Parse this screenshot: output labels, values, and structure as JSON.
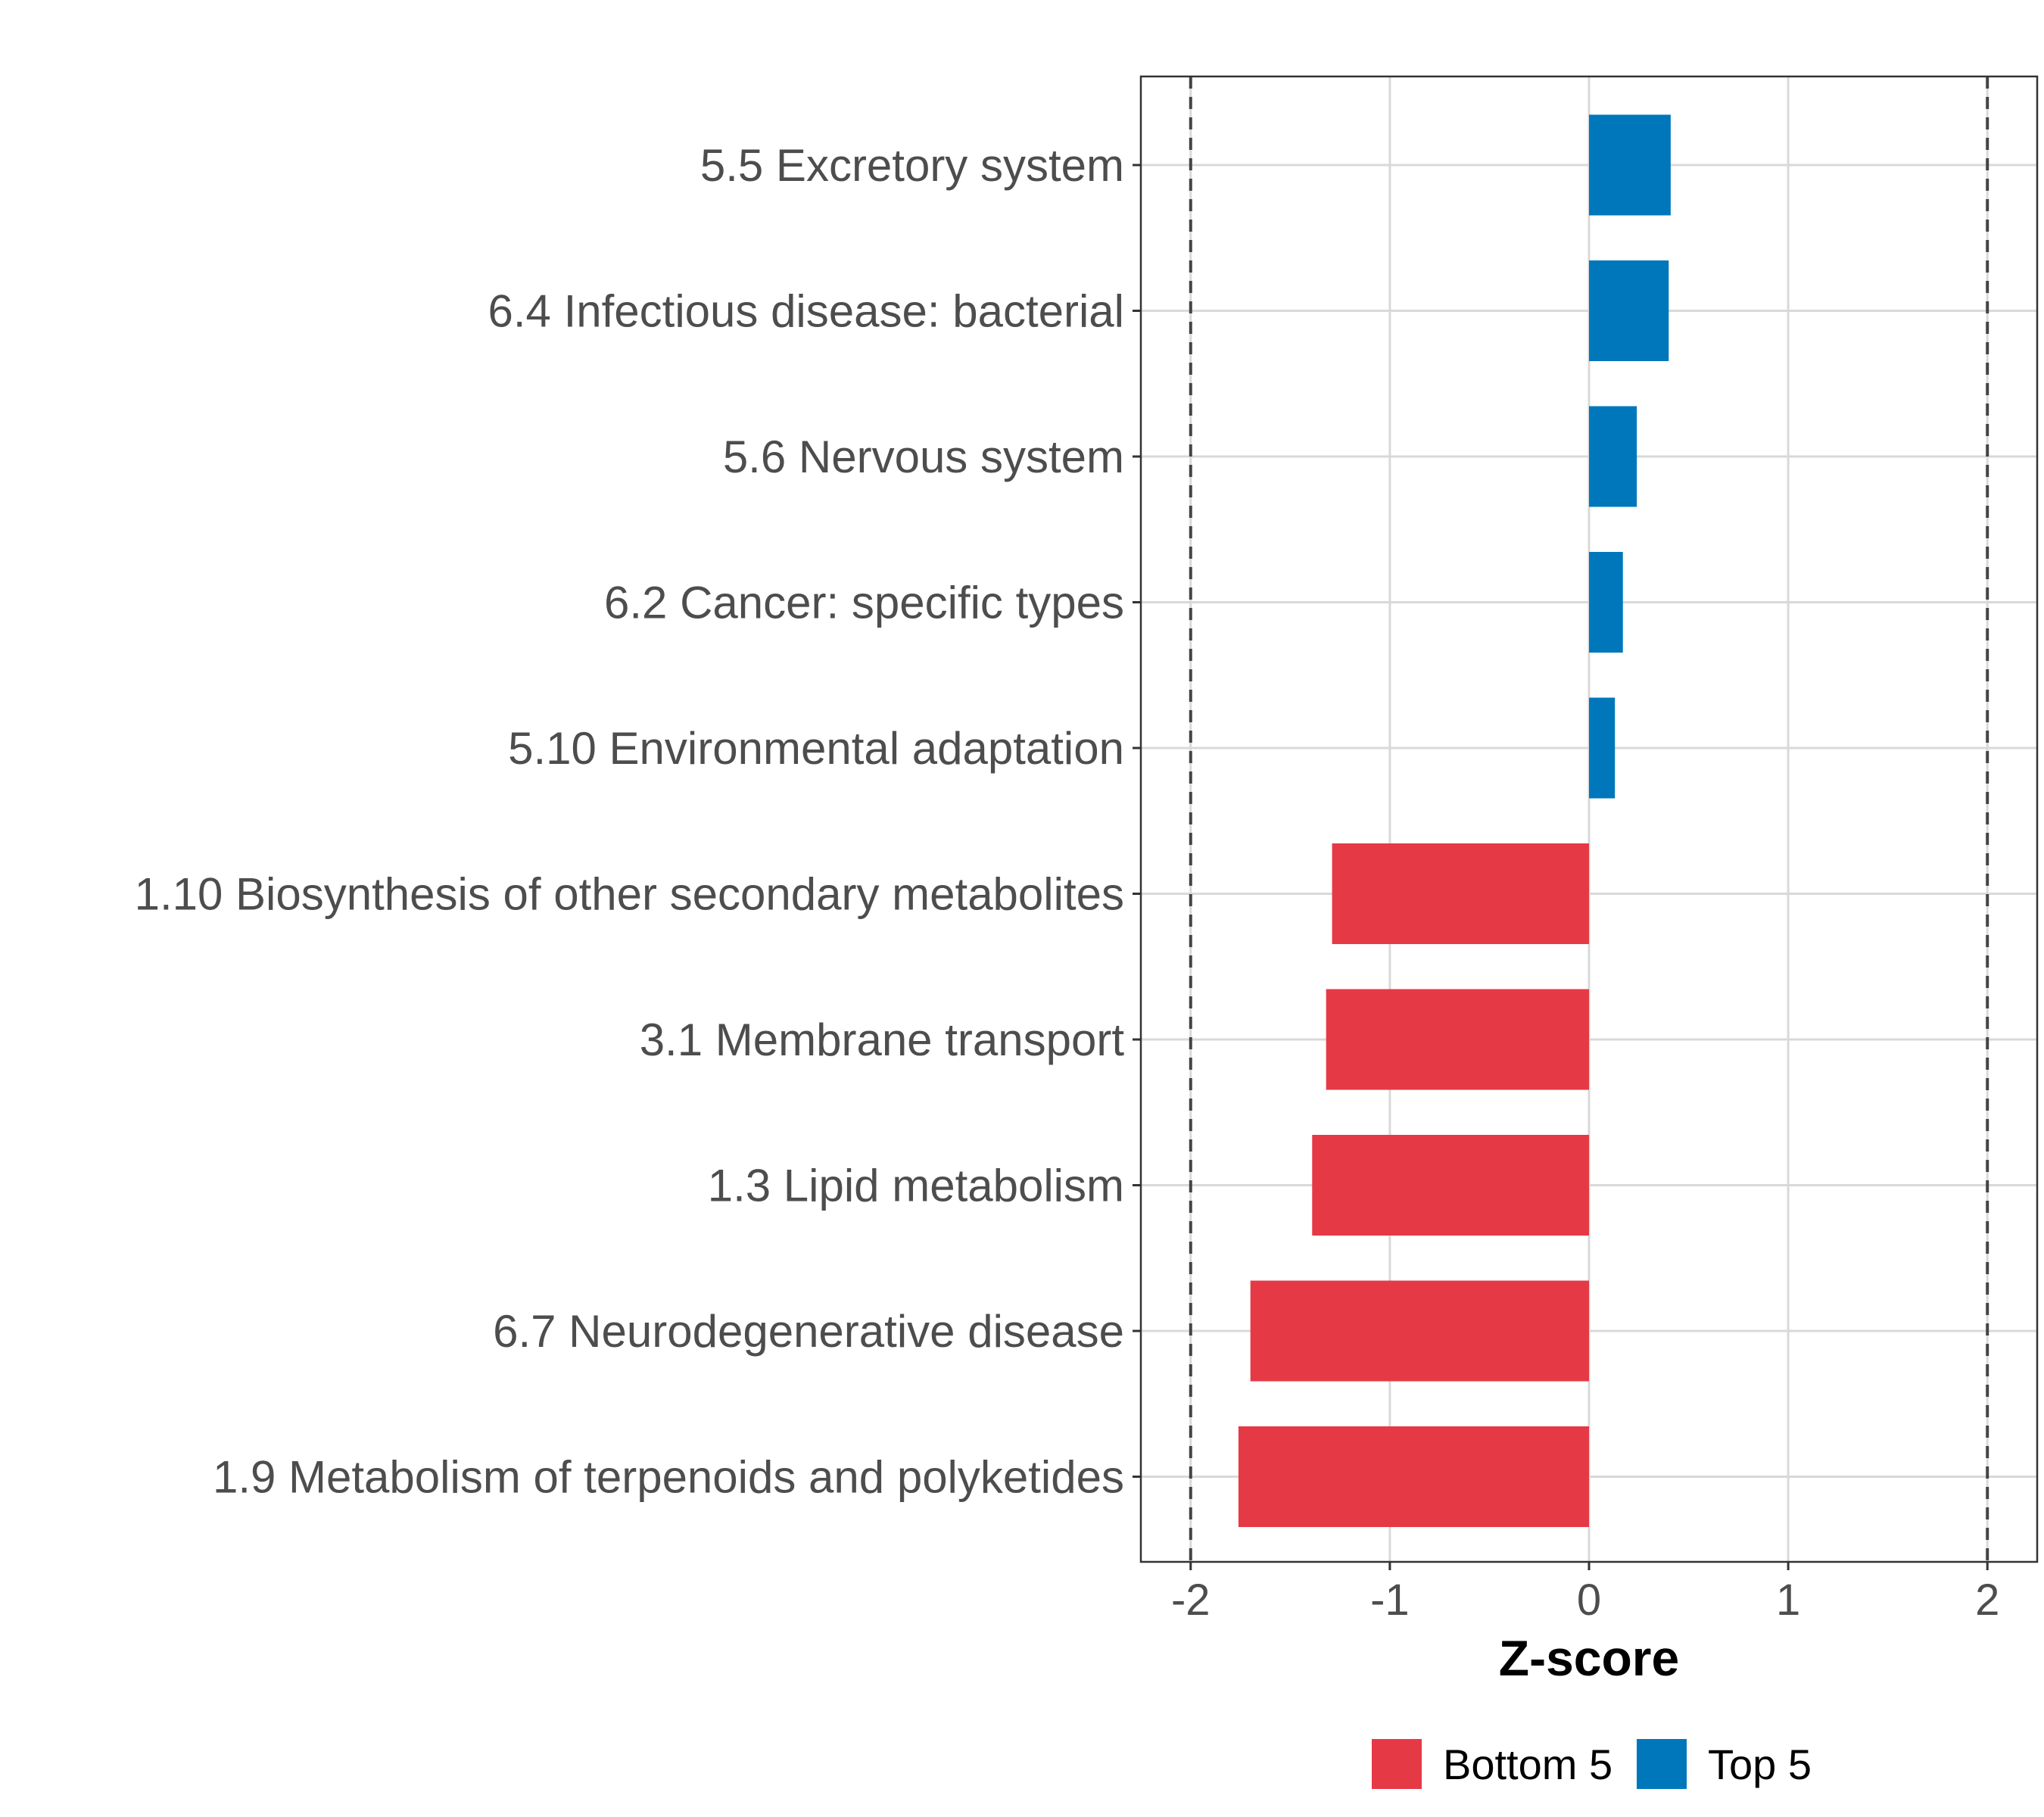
{
  "chart_data": {
    "type": "bar",
    "orientation": "horizontal",
    "title": "",
    "xlabel": "Z-score",
    "ylabel": "",
    "xlim": [
      -2.25,
      2.25
    ],
    "x_ticks": [
      -2,
      -1,
      0,
      1,
      2
    ],
    "x_tick_labels": [
      "-2",
      "-1",
      "0",
      "1",
      "2"
    ],
    "reference_lines": [
      -2,
      2
    ],
    "grid": true,
    "legend_position": "bottom",
    "categories": [
      "5.5 Excretory system",
      "6.4 Infectious disease: bacterial",
      "5.6 Nervous system",
      "6.2 Cancer: specific types",
      "5.10 Environmental adaptation",
      "1.10 Biosynthesis of other secondary metabolites",
      "3.1 Membrane transport",
      "1.3 Lipid metabolism",
      "6.7 Neurodegenerative disease",
      "1.9 Metabolism of terpenoids and polyketides"
    ],
    "values": [
      0.41,
      0.4,
      0.24,
      0.17,
      0.13,
      -1.29,
      -1.32,
      -1.39,
      -1.7,
      -1.76
    ],
    "groups": [
      "Top 5",
      "Top 5",
      "Top 5",
      "Top 5",
      "Top 5",
      "Bottom 5",
      "Bottom 5",
      "Bottom 5",
      "Bottom 5",
      "Bottom 5"
    ],
    "legend": [
      {
        "name": "Bottom 5",
        "color": "#E63946"
      },
      {
        "name": "Top 5",
        "color": "#0077BB"
      }
    ]
  }
}
